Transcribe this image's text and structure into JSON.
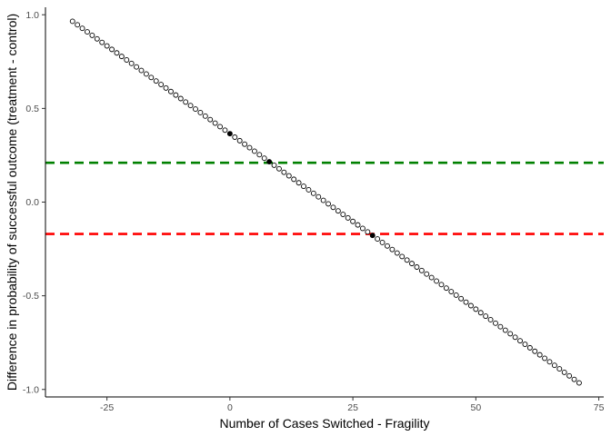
{
  "chart_data": {
    "type": "scatter",
    "title": "",
    "xlabel": "Number of Cases Switched - Fragility",
    "ylabel": "Difference in probability of successful outcome (treatment - control)",
    "xlim": [
      -37.5,
      76
    ],
    "ylim": [
      -1.04,
      1.04
    ],
    "x_ticks": [
      -25,
      0,
      25,
      50,
      75
    ],
    "x_tick_labels": [
      "-25",
      "0",
      "25",
      "50",
      "75"
    ],
    "y_ticks": [
      -1.0,
      -0.5,
      0.0,
      0.5,
      1.0
    ],
    "y_tick_labels": [
      "-1.0",
      "-0.5",
      "0.0",
      "0.5",
      "1.0"
    ],
    "grid": false,
    "legend": "none",
    "series": [
      {
        "x_start": -32,
        "x_end": 71,
        "x_step": 1,
        "y_at_x_start": 0.965,
        "y_at_x_end": -0.965,
        "marker": "open-circle",
        "highlighted_points": [
          {
            "x": 0,
            "marker": "filled-circle"
          },
          {
            "x": 8,
            "marker": "filled-circle"
          },
          {
            "x": 29,
            "marker": "filled-circle"
          }
        ]
      }
    ],
    "reference_lines": [
      {
        "y": 0.21,
        "color": "#008000",
        "style": "dashed"
      },
      {
        "y": -0.17,
        "color": "#ff0000",
        "style": "dashed"
      }
    ]
  }
}
